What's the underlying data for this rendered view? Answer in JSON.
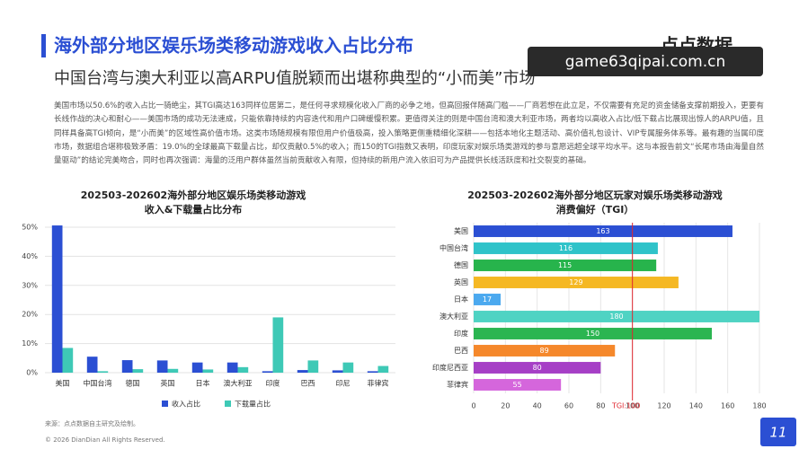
{
  "header": {
    "title": "海外部分地区娱乐场类移动游戏收入占比分布",
    "subtitle": "中国台湾与澳大利亚以高ARPU值脱颖而出堪称典型的“小而美”市场",
    "logo": "点点数据",
    "watermark": "game63qipai.com.cn"
  },
  "paragraph": "美国市场以50.6%的收入占比一骑绝尘，其TGI高达163同样位居第二，是任何寻求规模化收入厂商的必争之地，但高回报伴随高门槛——厂商若想在此立足，不仅需要有充足的资金储备支撑前期投入，更要有长线作战的决心和耐心——美国市场的成功无法速成，只能依靠持续的内容迭代和用户口碑缓慢积累。更值得关注的则是中国台湾和澳大利亚市场，两者均以高收入占比/低下载占比展现出惊人的ARPU值，且同样具备高TGI倾向，是“小而美”的区域性高价值市场。这类市场随规模有限但用户价值极高，投入策略更侧重精细化深耕——包括本地化主题活动、高价值礼包设计、VIP专属服务体系等。最有趣的当属印度市场，数据组合堪称极致矛盾：19.0%的全球最高下载量占比，却仅贡献0.5%的收入；而150的TGI指数又表明，印度玩家对娱乐场类游戏的参与意愿远超全球平均水平。这与本报告前文“长尾市场由海量自然量驱动”的结论完美吻合，同时也再次强调：海量的泛用户群体虽然当前贡献收入有限，但持续的新用户流入依旧可为产品提供长线活跃度和社交裂变的基础。",
  "chart_data": [
    {
      "type": "bar",
      "title": [
        "202503-202602海外部分地区娱乐场类移动游戏",
        "收入&下载量占比分布"
      ],
      "categories": [
        "美国",
        "中国台湾",
        "德国",
        "英国",
        "日本",
        "澳大利亚",
        "印度",
        "巴西",
        "印尼",
        "菲律宾"
      ],
      "series": [
        {
          "name": "收入占比",
          "color": "#2b4fd3",
          "values": [
            50.6,
            5.5,
            4.3,
            4.2,
            3.5,
            3.5,
            0.5,
            0.9,
            0.8,
            0.5
          ]
        },
        {
          "name": "下载量占比",
          "color": "#3ec9b6",
          "values": [
            8.5,
            0.5,
            1.2,
            1.3,
            1.1,
            1.9,
            19.0,
            4.2,
            3.5,
            2.3
          ]
        }
      ],
      "ylim": [
        0,
        50
      ],
      "yticks": [
        {
          "value": 0,
          "label": "0%"
        },
        {
          "value": 10,
          "label": "10%"
        },
        {
          "value": 20,
          "label": "20%"
        },
        {
          "value": 30,
          "label": "30%"
        },
        {
          "value": 40,
          "label": "40%"
        },
        {
          "value": 50,
          "label": "50%"
        }
      ],
      "grid": true,
      "legend": "bottom"
    },
    {
      "type": "barh",
      "title": [
        "202503-202602海外部分地区玩家对娱乐场类移动游戏",
        "消费偏好（TGI）"
      ],
      "categories": [
        "美国",
        "中国台湾",
        "德国",
        "英国",
        "日本",
        "澳大利亚",
        "印度",
        "巴西",
        "印度尼西亚",
        "菲律宾"
      ],
      "values": [
        163,
        116,
        115,
        129,
        17,
        180,
        150,
        89,
        80,
        55
      ],
      "colors": [
        "#2b4fd3",
        "#2fc3c9",
        "#27b44c",
        "#f5b823",
        "#4ba9ef",
        "#4fd3c3",
        "#2bb551",
        "#f5882b",
        "#a63fc6",
        "#d566dc"
      ],
      "xlim": [
        0,
        180
      ],
      "xticks": [
        0,
        20,
        40,
        60,
        80,
        100,
        120,
        140,
        160,
        180
      ],
      "grid": true,
      "reference_line": {
        "value": 100,
        "label": "TGI:100",
        "color": "#e0262e"
      }
    }
  ],
  "source": "来源：点点数据自主研究及绘制。",
  "footer": "© 2026 DianDian All Rights Reserved.",
  "page_number": "11"
}
